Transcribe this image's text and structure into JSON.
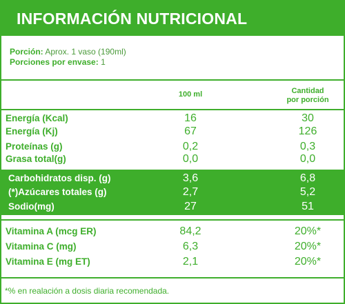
{
  "title": "INFORMACIÓN NUTRICIONAL",
  "portion": {
    "label1": "Porción:",
    "value1": "Aprox. 1 vaso (190ml)",
    "label2": "Porciones por envase:",
    "value2": "1"
  },
  "columns": {
    "col1": "100 ml",
    "col2_line1": "Cantidad",
    "col2_line2": "por porción"
  },
  "rows_top": [
    {
      "label": "Energía (Kcal)",
      "v1": "16",
      "v2": "30"
    },
    {
      "label": "Energía (Kj)",
      "v1": "67",
      "v2": "126"
    },
    {
      "label": "Proteínas (g)",
      "v1": "0,2",
      "v2": "0,3"
    },
    {
      "label": "Grasa total(g)",
      "v1": "0,0",
      "v2": "0,0"
    }
  ],
  "rows_band": [
    {
      "label": "Carbohidratos disp. (g)",
      "v1": "3,6",
      "v2": "6,8"
    },
    {
      "label": "(*)Azúcares totales (g)",
      "v1": "2,7",
      "v2": "5,2"
    },
    {
      "label": "Sodio(mg)",
      "v1": "27",
      "v2": "51"
    }
  ],
  "rows_vit": [
    {
      "label": "Vitamina A (mcg ER)",
      "v1": "84,2",
      "v2": "20%*"
    },
    {
      "label": "Vitamina C (mg)",
      "v1": "6,3",
      "v2": "20%*"
    },
    {
      "label": "Vitamina E (mg ET)",
      "v1": "2,1",
      "v2": "20%*"
    }
  ],
  "footnote": "*% en realación a dosis diaria recomendada.",
  "colors": {
    "accent": "#3eae2b",
    "background": "#ffffff"
  }
}
